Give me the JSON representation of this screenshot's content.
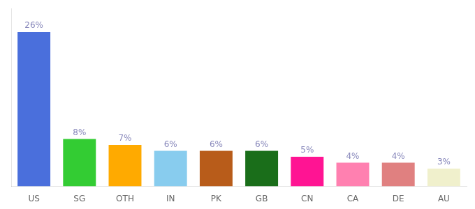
{
  "chart_data": {
    "type": "bar",
    "categories": [
      "US",
      "SG",
      "OTH",
      "IN",
      "PK",
      "GB",
      "CN",
      "CA",
      "DE",
      "AU"
    ],
    "values": [
      26,
      8,
      7,
      6,
      6,
      6,
      5,
      4,
      4,
      3
    ],
    "value_labels": [
      "26%",
      "8%",
      "7%",
      "6%",
      "6%",
      "6%",
      "5%",
      "4%",
      "4%",
      "3%"
    ],
    "colors": [
      "#4a6fdc",
      "#33cc33",
      "#ffaa00",
      "#88ccee",
      "#b85c1a",
      "#1a6e1a",
      "#ff1493",
      "#ff80b0",
      "#e08080",
      "#f0f0cc"
    ],
    "ylim": [
      0,
      30
    ],
    "grid": false,
    "data_labels": true,
    "tick_labels": "x"
  }
}
